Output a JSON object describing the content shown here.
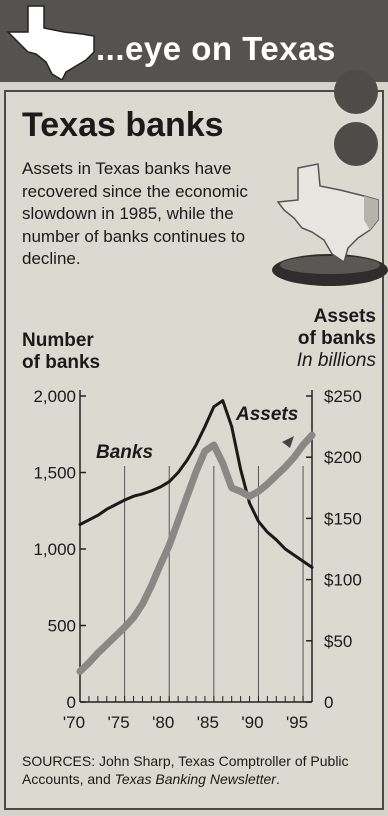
{
  "header": {
    "banner_text": "...eye on Texas",
    "title": "Texas banks",
    "intro": "Assets in Texas banks have recovered since the economic slowdown in 1985, while the number of banks continues to decline."
  },
  "axis_labels": {
    "left_line1": "Number",
    "left_line2": "of banks",
    "right_line1": "Assets",
    "right_line2": "of banks",
    "right_unit": "In billions"
  },
  "sources": {
    "text": "SOURCES: John Sharp, Texas Comptroller of Public Accounts, and ",
    "publication": "Texas Banking Newsletter",
    "end": "."
  },
  "colors": {
    "banks_line": "#1a1a1a",
    "assets_line": "#8a8884",
    "banner_bg": "#555350"
  },
  "chart_data": {
    "type": "line",
    "title": "Texas banks",
    "x": [
      1970,
      1971,
      1972,
      1973,
      1974,
      1975,
      1976,
      1977,
      1978,
      1979,
      1980,
      1981,
      1982,
      1983,
      1984,
      1985,
      1986,
      1987,
      1988,
      1989,
      1990,
      1991,
      1992,
      1993,
      1994,
      1995,
      1996
    ],
    "xticks": [
      "'70",
      "'75",
      "'80",
      "'85",
      "'90",
      "'95"
    ],
    "xlim": [
      1970,
      1996
    ],
    "series": [
      {
        "name": "Banks",
        "axis": "left",
        "values": [
          1160,
          1190,
          1220,
          1260,
          1290,
          1320,
          1345,
          1360,
          1380,
          1405,
          1440,
          1500,
          1580,
          1680,
          1800,
          1930,
          1970,
          1800,
          1520,
          1300,
          1180,
          1110,
          1060,
          1000,
          960,
          920,
          880
        ]
      },
      {
        "name": "Assets",
        "axis": "right",
        "values": [
          25,
          32,
          40,
          47,
          54,
          61,
          69,
          80,
          95,
          112,
          128,
          148,
          168,
          188,
          205,
          210,
          195,
          175,
          172,
          168,
          172,
          178,
          185,
          192,
          200,
          210,
          218
        ]
      }
    ],
    "left_axis": {
      "label": "Number of banks",
      "ylim": [
        0,
        2000
      ],
      "ticks": [
        0,
        500,
        1000,
        1500,
        2000
      ],
      "tick_labels": [
        "0",
        "500",
        "1,000",
        "1,500",
        "2,000"
      ]
    },
    "right_axis": {
      "label": "Assets of banks",
      "unit": "In billions",
      "ylim": [
        0,
        250
      ],
      "ticks": [
        0,
        50,
        100,
        150,
        200,
        250
      ],
      "tick_labels": [
        "0",
        "$50",
        "$100",
        "$150",
        "$200",
        "$250"
      ]
    },
    "vertical_gridlines": [
      1975,
      1980,
      1985,
      1990,
      1995
    ],
    "grid": true
  }
}
